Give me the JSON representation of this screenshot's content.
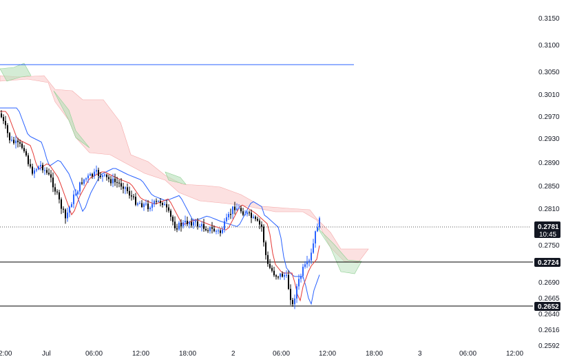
{
  "chart_data": {
    "type": "candlestick",
    "y_ticks": [
      "0.3150",
      "0.3100",
      "0.3050",
      "0.3010",
      "0.2970",
      "0.2930",
      "0.2890",
      "0.2850",
      "0.2810",
      "0.2750",
      "0.2690",
      "0.2665",
      "0.2640",
      "0.2616",
      "0.2592"
    ],
    "x_ticks": [
      "2:00",
      "Jul",
      "06:00",
      "12:00",
      "18:00",
      "2",
      "06:00",
      "12:00",
      "18:00",
      "3",
      "06:00",
      "12:00"
    ],
    "last_price": {
      "value": "0.2781",
      "countdown": "10:45"
    },
    "horizontal_levels": [
      {
        "value": "0.2724",
        "color": "#000000"
      },
      {
        "value": "0.2652",
        "color": "#000000"
      }
    ],
    "colors": {
      "up_candle": "#2962ff",
      "down_candle": "#000000",
      "kijun": "#2962ff",
      "tenkan": "#e53935",
      "cloud_bear": "#f8bcbc",
      "cloud_bull": "#b7dfb9",
      "upper_line": "#2962ff"
    }
  }
}
